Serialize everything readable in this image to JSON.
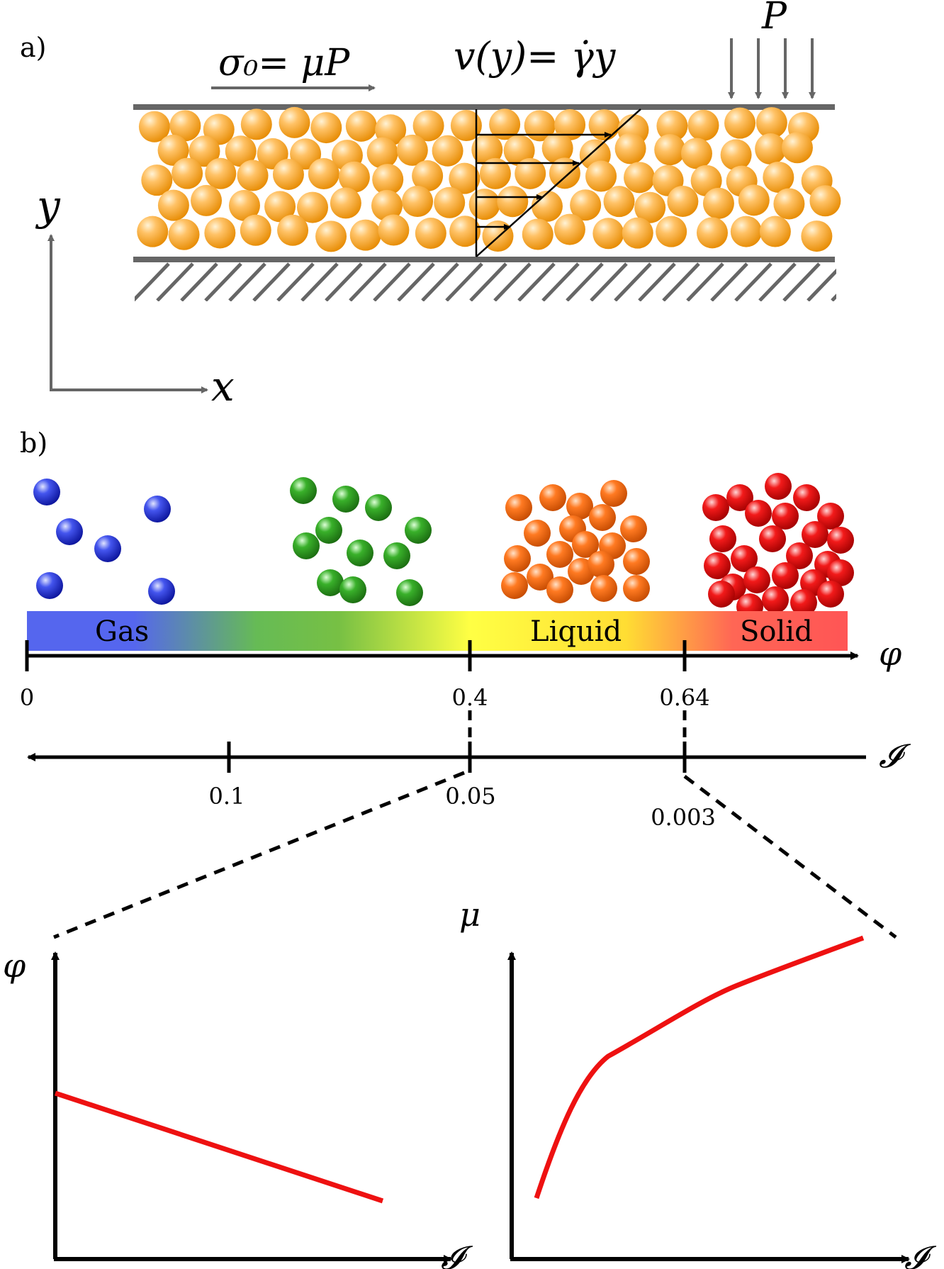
{
  "panel_a": {
    "label": "a)",
    "stress_label": "σ₀= μP",
    "velocity_label": "v(y)= γ̇y",
    "pressure_label": "P",
    "axis_y": "y",
    "axis_x": "x"
  },
  "panel_b": {
    "label": "b)",
    "phase_labels": [
      "Gas",
      "Liquid",
      "Solid"
    ],
    "phi_axis_label": "φ",
    "phi_ticks": [
      "0",
      "0.4",
      "0.64"
    ],
    "inertial_axis_label": "𝓘",
    "inertial_ticks": [
      "0.1",
      "0.05",
      "0.003"
    ],
    "phase_colors": {
      "gas": "#3344dd",
      "transition": "#33aa22",
      "liquid": "#ff7722",
      "solid": "#ee1111",
      "bead_sheared": "#ffaa33"
    }
  },
  "insets": {
    "left": {
      "y_label": "φ",
      "x_label": "𝓘",
      "curve": "linear decrease"
    },
    "right": {
      "y_label": "μ",
      "x_label": "𝓘",
      "curve": "increasing, concave"
    }
  }
}
